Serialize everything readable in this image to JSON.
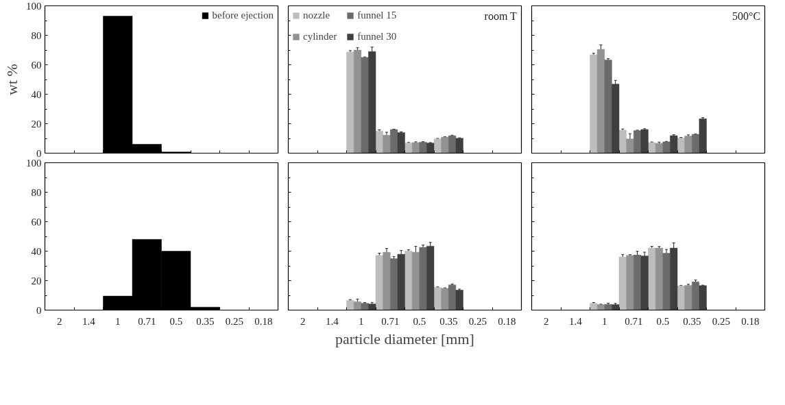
{
  "chart_data": [
    {
      "type": "bar",
      "categories": [
        "2",
        "1.4",
        "1",
        "0.71",
        "0.5",
        "0.35",
        "0.25",
        "0.18"
      ],
      "ylabel": "wt %",
      "ylim": [
        0,
        100
      ],
      "yticks": [
        0,
        20,
        40,
        60,
        80,
        100
      ],
      "tick_labels": "y",
      "legend": "top right",
      "grid": false,
      "series": [
        {
          "name": "before ejection",
          "color": "#000000",
          "values": [
            null,
            null,
            93,
            6,
            0.8,
            null,
            null,
            null
          ]
        }
      ]
    },
    {
      "type": "bar",
      "categories": [
        "2",
        "1.4",
        "1",
        "0.71",
        "0.5",
        "0.35",
        "0.25",
        "0.18"
      ],
      "ylim": [
        0,
        100
      ],
      "yticks": [
        0,
        20,
        40,
        60,
        80,
        100
      ],
      "tick_labels": false,
      "legend": "top left",
      "grid": false,
      "annotations": [
        "room T"
      ],
      "series": [
        {
          "name": "nozzle",
          "color": "#bdbdbd",
          "values": [
            null,
            null,
            68.6,
            15,
            6.9,
            9.7,
            null,
            null
          ],
          "errors": [
            null,
            null,
            1,
            0.8,
            0.4,
            0.3,
            null,
            null
          ]
        },
        {
          "name": "cylinder",
          "color": "#929292",
          "values": [
            null,
            null,
            70,
            12.2,
            7.2,
            10.9,
            null,
            null
          ],
          "errors": [
            null,
            null,
            1.5,
            2,
            0.5,
            0.3,
            null,
            null
          ]
        },
        {
          "name": "funnel 15",
          "color": "#6b6b6b",
          "values": [
            null,
            null,
            65,
            16,
            7.5,
            11.9,
            null,
            null
          ],
          "errors": [
            null,
            null,
            0.3,
            0.3,
            0.3,
            0.3,
            null,
            null
          ]
        },
        {
          "name": "funnel 30",
          "color": "#3f3f3f",
          "values": [
            null,
            null,
            69,
            14,
            6.9,
            10.1,
            null,
            null
          ],
          "errors": [
            null,
            null,
            3,
            0.5,
            0.3,
            0.3,
            null,
            null
          ]
        }
      ]
    },
    {
      "type": "bar",
      "categories": [
        "2",
        "1.4",
        "1",
        "0.71",
        "0.5",
        "0.35",
        "0.25",
        "0.18"
      ],
      "ylim": [
        0,
        100
      ],
      "yticks": [
        0,
        20,
        40,
        60,
        80,
        100
      ],
      "tick_labels": false,
      "legend": false,
      "grid": false,
      "annotations": [
        "500°C"
      ],
      "series": [
        {
          "color": "#bdbdbd",
          "values": [
            null,
            null,
            66.8,
            15.6,
            7.2,
            10.4,
            null,
            null
          ],
          "errors": [
            null,
            null,
            1,
            0.8,
            0.4,
            0.3,
            null,
            null
          ]
        },
        {
          "color": "#929292",
          "values": [
            null,
            null,
            70.5,
            9.7,
            6.7,
            11.6,
            null,
            null
          ],
          "errors": [
            null,
            null,
            3,
            3.5,
            0.8,
            0.8,
            null,
            null
          ]
        },
        {
          "color": "#6b6b6b",
          "values": [
            null,
            null,
            63.3,
            15.3,
            7.7,
            12.8,
            null,
            null
          ],
          "errors": [
            null,
            null,
            0.8,
            0.3,
            0.3,
            0.3,
            null,
            null
          ]
        },
        {
          "color": "#3f3f3f",
          "values": [
            null,
            null,
            46.9,
            16.1,
            11.9,
            23.4,
            null,
            null
          ],
          "errors": [
            null,
            null,
            2.5,
            0.5,
            0.6,
            0.7,
            null,
            null
          ]
        }
      ]
    },
    {
      "type": "bar",
      "categories": [
        "2",
        "1.4",
        "1",
        "0.71",
        "0.5",
        "0.35",
        "0.25",
        "0.18"
      ],
      "ylim": [
        0,
        100
      ],
      "yticks": [
        0,
        20,
        40,
        60,
        80,
        100
      ],
      "legend": false,
      "grid": false,
      "series": [
        {
          "color": "#000000",
          "values": [
            null,
            null,
            9.5,
            48,
            40,
            2,
            null,
            null
          ]
        }
      ]
    },
    {
      "type": "bar",
      "categories": [
        "2",
        "1.4",
        "1",
        "0.71",
        "0.5",
        "0.35",
        "0.25",
        "0.18"
      ],
      "xlabel": "particle diameter [mm]",
      "ylim": [
        0,
        100
      ],
      "yticks": [
        0,
        20,
        40,
        60,
        80,
        100
      ],
      "tick_labels": "x",
      "legend": false,
      "grid": false,
      "series": [
        {
          "color": "#bdbdbd",
          "values": [
            null,
            null,
            6.6,
            37.1,
            40.1,
            15.4,
            null,
            null
          ],
          "errors": [
            null,
            null,
            0.5,
            1.5,
            0.8,
            0.3,
            null,
            null
          ]
        },
        {
          "color": "#929292",
          "values": [
            null,
            null,
            5.7,
            39.3,
            39.3,
            14.8,
            null,
            null
          ],
          "errors": [
            null,
            null,
            1.8,
            2.5,
            4,
            0.3,
            null,
            null
          ]
        },
        {
          "color": "#6b6b6b",
          "values": [
            null,
            null,
            4.6,
            35,
            42.6,
            17.1,
            null,
            null
          ],
          "errors": [
            null,
            null,
            0.5,
            1.3,
            1.5,
            0.6,
            null,
            null
          ]
        },
        {
          "color": "#3f3f3f",
          "values": [
            null,
            null,
            4.2,
            37.9,
            43.4,
            13.6,
            null,
            null
          ],
          "errors": [
            null,
            null,
            1,
            2.5,
            2.5,
            0.6,
            null,
            null
          ]
        }
      ]
    },
    {
      "type": "bar",
      "categories": [
        "2",
        "1.4",
        "1",
        "0.71",
        "0.5",
        "0.35",
        "0.25",
        "0.18"
      ],
      "ylim": [
        0,
        100
      ],
      "yticks": [
        0,
        20,
        40,
        60,
        80,
        100
      ],
      "tick_labels": "x",
      "legend": false,
      "grid": false,
      "series": [
        {
          "color": "#bdbdbd",
          "values": [
            null,
            null,
            4.6,
            36.1,
            42.2,
            16.5,
            null,
            null
          ],
          "errors": [
            null,
            null,
            0.5,
            1.5,
            1,
            0.3,
            null,
            null
          ]
        },
        {
          "color": "#929292",
          "values": [
            null,
            null,
            3.7,
            37.1,
            42.1,
            16.8,
            null,
            null
          ],
          "errors": [
            null,
            null,
            0.3,
            0.5,
            1,
            0.7,
            null,
            null
          ]
        },
        {
          "color": "#6b6b6b",
          "values": [
            null,
            null,
            3.9,
            37.4,
            38.6,
            19.2,
            null,
            null
          ],
          "errors": [
            null,
            null,
            0.8,
            2.5,
            2.5,
            1.2,
            null,
            null
          ]
        },
        {
          "color": "#3f3f3f",
          "values": [
            null,
            null,
            3.7,
            36.8,
            42.1,
            16.6,
            null,
            null
          ],
          "errors": [
            null,
            null,
            0.8,
            2.5,
            3.5,
            0.3,
            null,
            null
          ]
        }
      ]
    }
  ]
}
